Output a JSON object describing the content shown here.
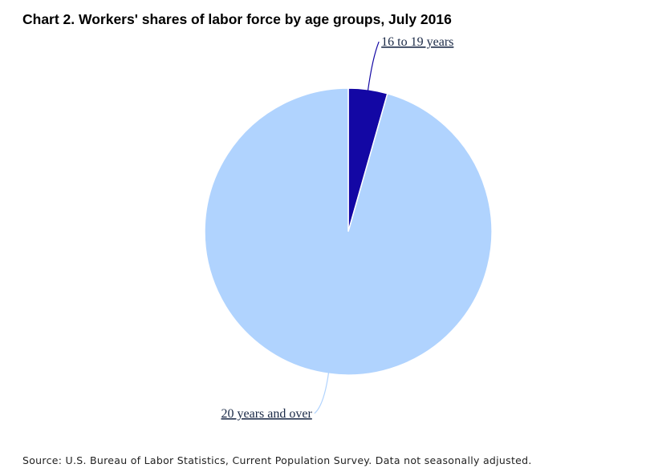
{
  "chart_data": {
    "type": "pie",
    "title": "Chart 2. Workers' shares of labor force by age groups, July 2016",
    "categories": [
      "16 to 19 years",
      "20 years and over"
    ],
    "values": [
      4.4,
      95.6
    ],
    "colors": [
      "#1307a4",
      "#b0d3fe"
    ],
    "source": "Source: U.S. Bureau of Labor Statistics, Current Population Survey. Data not seasonally adjusted."
  }
}
